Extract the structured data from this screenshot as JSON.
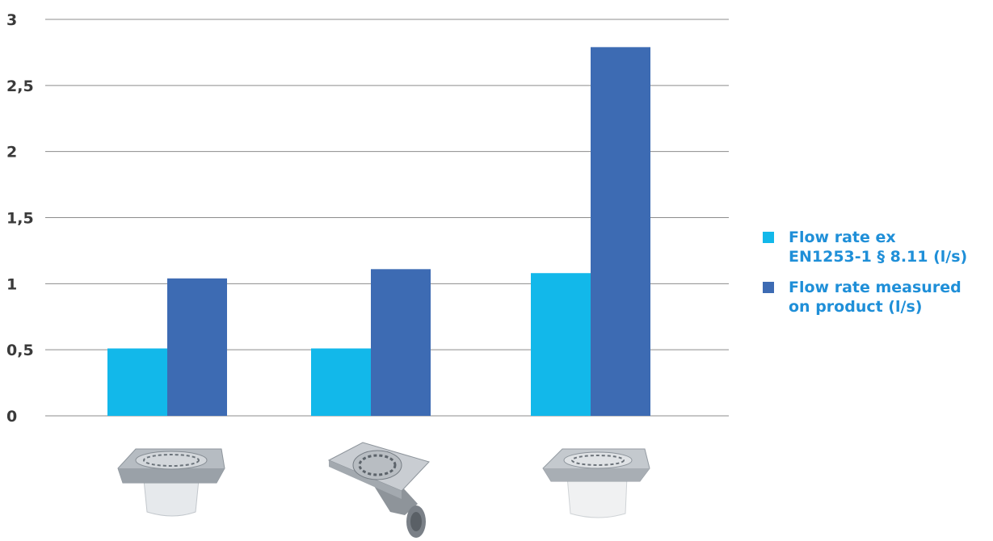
{
  "chart_data": {
    "type": "bar",
    "categories": [
      "",
      "",
      ""
    ],
    "series": [
      {
        "name": "Flow rate ex\nEN1253-1 § 8.11 (l/s)",
        "color": "#12b8ea",
        "values": [
          0.51,
          0.51,
          1.08
        ]
      },
      {
        "name": "Flow rate measured\non product (l/s)",
        "color": "#3d6bb3",
        "values": [
          1.04,
          1.11,
          2.79
        ]
      }
    ],
    "yticks": [
      "0",
      "0,5",
      "1",
      "1,5",
      "2",
      "2,5",
      "3"
    ],
    "ytick_values": [
      0,
      0.5,
      1,
      1.5,
      2,
      2.5,
      3
    ],
    "ylim": [
      0,
      3
    ],
    "grid": true,
    "legend_position": "right",
    "category_images": [
      "square-drain-vertical-outlet",
      "square-drain-angled-outlet",
      "square-drain-white-body"
    ],
    "title": "",
    "xlabel": "",
    "ylabel": ""
  }
}
